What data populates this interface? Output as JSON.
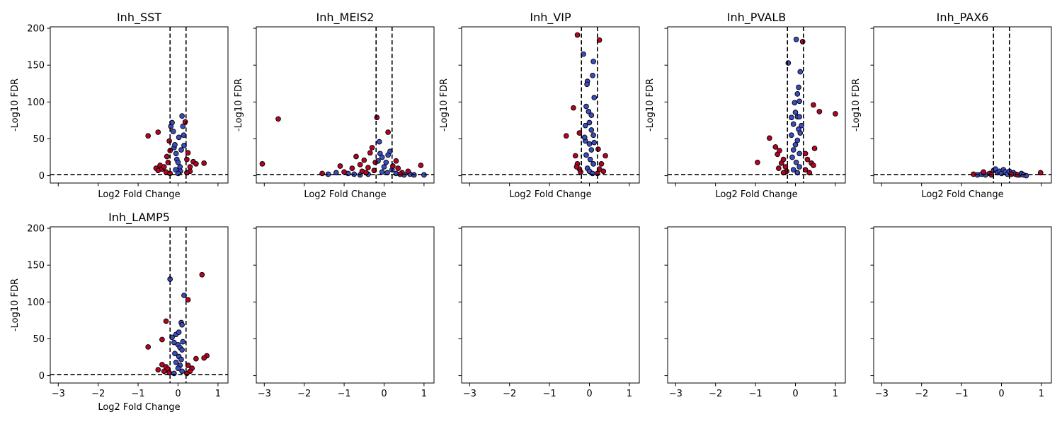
{
  "colors": {
    "significant": "#b40426",
    "not_significant": "#3b4cc0",
    "edge": "#000000"
  },
  "chart_data": {
    "type": "scatter",
    "layout": "grid-2x5",
    "xlim": [
      -3.2,
      1.25
    ],
    "ylim": [
      -10,
      202
    ],
    "xticks": [
      -3,
      -2,
      -1,
      0,
      1
    ],
    "yticks": [
      0,
      50,
      100,
      150,
      200
    ],
    "xlabel": "Log2 Fold Change",
    "ylabel": "-Log10 FDR",
    "reference_lines": {
      "vertical": [
        -0.2,
        0.2
      ],
      "horizontal": 1.3
    },
    "subplots": [
      {
        "title": "Inh_SST",
        "points": [
          [
            -0.75,
            54,
            1
          ],
          [
            -0.5,
            59,
            1
          ],
          [
            -0.55,
            10,
            1
          ],
          [
            -0.5,
            7,
            1
          ],
          [
            -0.45,
            14,
            1
          ],
          [
            -0.4,
            9,
            1
          ],
          [
            -0.35,
            12,
            1
          ],
          [
            -0.3,
            5,
            1
          ],
          [
            -0.28,
            26,
            1
          ],
          [
            -0.25,
            18,
            1
          ],
          [
            -0.22,
            47,
            1
          ],
          [
            -0.2,
            34,
            1
          ],
          [
            -0.18,
            67,
            0
          ],
          [
            -0.15,
            72,
            0
          ],
          [
            -0.12,
            60,
            0
          ],
          [
            -0.1,
            38,
            0
          ],
          [
            -0.08,
            42,
            0
          ],
          [
            -0.05,
            30,
            0
          ],
          [
            -0.03,
            22,
            0
          ],
          [
            0.0,
            18,
            0
          ],
          [
            0.02,
            52,
            0
          ],
          [
            0.05,
            12,
            0
          ],
          [
            0.08,
            35,
            0
          ],
          [
            0.1,
            81,
            0
          ],
          [
            0.12,
            67,
            0
          ],
          [
            0.14,
            55,
            0
          ],
          [
            0.15,
            41,
            0
          ],
          [
            0.06,
            6,
            0
          ],
          [
            -0.06,
            8,
            0
          ],
          [
            0.0,
            3,
            0
          ],
          [
            0.18,
            73,
            1
          ],
          [
            0.25,
            31,
            1
          ],
          [
            0.22,
            22,
            1
          ],
          [
            0.3,
            6,
            1
          ],
          [
            0.38,
            19,
            1
          ],
          [
            0.45,
            16,
            1
          ],
          [
            0.65,
            17,
            1
          ],
          [
            0.3,
            12,
            1
          ],
          [
            0.22,
            4,
            1
          ],
          [
            -0.2,
            3,
            1
          ]
        ]
      },
      {
        "title": "Inh_MEIS2",
        "points": [
          [
            -3.05,
            16,
            1
          ],
          [
            -2.65,
            77,
            1
          ],
          [
            -1.55,
            3,
            1
          ],
          [
            -1.1,
            13,
            1
          ],
          [
            -1.0,
            5,
            1
          ],
          [
            -0.8,
            10,
            1
          ],
          [
            -0.7,
            26,
            1
          ],
          [
            -0.6,
            15,
            1
          ],
          [
            -0.55,
            6,
            1
          ],
          [
            -0.5,
            21,
            1
          ],
          [
            -0.45,
            4,
            1
          ],
          [
            -0.4,
            11,
            1
          ],
          [
            -0.35,
            31,
            1
          ],
          [
            -0.3,
            38,
            1
          ],
          [
            -0.25,
            7,
            1
          ],
          [
            -0.22,
            18,
            1
          ],
          [
            -1.4,
            2,
            0
          ],
          [
            -1.2,
            4,
            0
          ],
          [
            -0.9,
            3,
            0
          ],
          [
            -0.75,
            2,
            0
          ],
          [
            -0.6,
            1,
            0
          ],
          [
            -0.4,
            2,
            0
          ],
          [
            -0.15,
            20,
            0
          ],
          [
            -0.12,
            46,
            0
          ],
          [
            -0.1,
            30,
            0
          ],
          [
            -0.05,
            25,
            0
          ],
          [
            0.0,
            12,
            0
          ],
          [
            0.05,
            18,
            0
          ],
          [
            0.1,
            28,
            0
          ],
          [
            0.15,
            33,
            0
          ],
          [
            0.2,
            8,
            0
          ],
          [
            0.3,
            3,
            0
          ],
          [
            0.5,
            1,
            0
          ],
          [
            0.65,
            2,
            0
          ],
          [
            0.75,
            1,
            0
          ],
          [
            1.0,
            1,
            0
          ],
          [
            -0.05,
            5,
            0
          ],
          [
            0.08,
            4,
            0
          ],
          [
            -0.18,
            79,
            1
          ],
          [
            0.1,
            59,
            1
          ],
          [
            0.22,
            13,
            1
          ],
          [
            0.35,
            10,
            1
          ],
          [
            0.45,
            4,
            1
          ],
          [
            0.6,
            6,
            1
          ],
          [
            0.92,
            14,
            1
          ],
          [
            0.3,
            20,
            1
          ],
          [
            0.4,
            2,
            1
          ]
        ]
      },
      {
        "title": "Inh_VIP",
        "points": [
          [
            -0.3,
            191,
            1
          ],
          [
            -0.4,
            92,
            1
          ],
          [
            -0.58,
            54,
            1
          ],
          [
            -0.25,
            58,
            1
          ],
          [
            -0.35,
            27,
            1
          ],
          [
            -0.3,
            16,
            1
          ],
          [
            -0.25,
            9,
            1
          ],
          [
            -0.22,
            5,
            1
          ],
          [
            -0.32,
            12,
            1
          ],
          [
            -0.15,
            165,
            0
          ],
          [
            -0.05,
            128,
            0
          ],
          [
            -0.06,
            124,
            0
          ],
          [
            0.1,
            155,
            0
          ],
          [
            0.08,
            136,
            0
          ],
          [
            0.12,
            106,
            0
          ],
          [
            -0.08,
            94,
            0
          ],
          [
            -0.02,
            87,
            0
          ],
          [
            0.05,
            82,
            0
          ],
          [
            -0.1,
            68,
            0
          ],
          [
            0.0,
            72,
            0
          ],
          [
            0.05,
            62,
            0
          ],
          [
            0.1,
            55,
            0
          ],
          [
            -0.1,
            47,
            0
          ],
          [
            0.0,
            43,
            0
          ],
          [
            0.05,
            35,
            0
          ],
          [
            -0.08,
            28,
            0
          ],
          [
            0.02,
            22,
            0
          ],
          [
            0.1,
            16,
            0
          ],
          [
            -0.05,
            10,
            0
          ],
          [
            0.0,
            6,
            0
          ],
          [
            0.08,
            3,
            0
          ],
          [
            -0.12,
            52,
            0
          ],
          [
            0.12,
            45,
            0
          ],
          [
            0.25,
            184,
            1
          ],
          [
            0.22,
            36,
            1
          ],
          [
            0.4,
            27,
            1
          ],
          [
            0.3,
            16,
            1
          ],
          [
            0.25,
            9,
            1
          ],
          [
            0.35,
            6,
            1
          ],
          [
            0.2,
            3,
            1
          ]
        ]
      },
      {
        "title": "Inh_PVALB",
        "points": [
          [
            -0.95,
            18,
            1
          ],
          [
            -0.65,
            51,
            1
          ],
          [
            -0.5,
            39,
            1
          ],
          [
            -0.45,
            29,
            1
          ],
          [
            -0.4,
            34,
            1
          ],
          [
            -0.35,
            17,
            1
          ],
          [
            -0.3,
            22,
            1
          ],
          [
            -0.25,
            12,
            1
          ],
          [
            -0.22,
            6,
            1
          ],
          [
            -0.42,
            10,
            1
          ],
          [
            -0.3,
            4,
            1
          ],
          [
            -0.18,
            153,
            0
          ],
          [
            0.02,
            185,
            0
          ],
          [
            0.12,
            141,
            0
          ],
          [
            0.08,
            120,
            0
          ],
          [
            0.05,
            111,
            0
          ],
          [
            0.1,
            101,
            0
          ],
          [
            -0.02,
            99,
            0
          ],
          [
            0.0,
            86,
            0
          ],
          [
            0.05,
            80,
            0
          ],
          [
            0.1,
            80,
            0
          ],
          [
            -0.1,
            79,
            0
          ],
          [
            -0.05,
            70,
            0
          ],
          [
            0.08,
            63,
            0
          ],
          [
            0.12,
            58,
            0
          ],
          [
            -0.1,
            55,
            0
          ],
          [
            0.05,
            48,
            0
          ],
          [
            0.0,
            42,
            0
          ],
          [
            -0.05,
            35,
            0
          ],
          [
            0.1,
            30,
            0
          ],
          [
            -0.08,
            25,
            0
          ],
          [
            0.02,
            18,
            0
          ],
          [
            0.1,
            12,
            0
          ],
          [
            -0.05,
            8,
            0
          ],
          [
            0.05,
            4,
            0
          ],
          [
            0.15,
            68,
            0
          ],
          [
            0.18,
            182,
            1
          ],
          [
            0.45,
            96,
            1
          ],
          [
            0.6,
            87,
            1
          ],
          [
            1.0,
            84,
            1
          ],
          [
            0.48,
            37,
            1
          ],
          [
            0.25,
            30,
            1
          ],
          [
            0.3,
            22,
            1
          ],
          [
            0.4,
            17,
            1
          ],
          [
            0.45,
            14,
            1
          ],
          [
            0.25,
            8,
            1
          ],
          [
            0.35,
            4,
            1
          ]
        ]
      },
      {
        "title": "Inh_PAX6",
        "points": [
          [
            -0.7,
            2,
            1
          ],
          [
            -0.45,
            5,
            1
          ],
          [
            -0.3,
            3,
            1
          ],
          [
            -0.25,
            1,
            1
          ],
          [
            -0.6,
            1,
            0
          ],
          [
            -0.5,
            2,
            0
          ],
          [
            -0.4,
            1,
            0
          ],
          [
            -0.2,
            7,
            0
          ],
          [
            -0.15,
            9,
            0
          ],
          [
            -0.1,
            4,
            0
          ],
          [
            -0.05,
            6,
            0
          ],
          [
            0.0,
            3,
            0
          ],
          [
            0.05,
            8,
            0
          ],
          [
            0.1,
            5,
            0
          ],
          [
            0.15,
            2,
            0
          ],
          [
            0.2,
            6,
            0
          ],
          [
            0.3,
            4,
            0
          ],
          [
            0.35,
            2,
            0
          ],
          [
            0.45,
            1,
            0
          ],
          [
            0.5,
            3,
            0
          ],
          [
            0.55,
            1,
            0
          ],
          [
            0.62,
            0,
            0
          ],
          [
            0.25,
            2,
            1
          ],
          [
            0.4,
            1,
            1
          ],
          [
            0.98,
            4,
            1
          ]
        ]
      },
      {
        "title": "Inh_LAMP5",
        "points": [
          [
            -0.75,
            39,
            1
          ],
          [
            -0.4,
            49,
            1
          ],
          [
            -0.3,
            74,
            1
          ],
          [
            -0.5,
            8,
            1
          ],
          [
            -0.4,
            15,
            1
          ],
          [
            -0.35,
            6,
            1
          ],
          [
            -0.3,
            12,
            1
          ],
          [
            -0.25,
            9,
            1
          ],
          [
            -0.22,
            4,
            1
          ],
          [
            -0.2,
            131,
            0
          ],
          [
            -0.15,
            52,
            0
          ],
          [
            -0.05,
            56,
            0
          ],
          [
            0.02,
            59,
            0
          ],
          [
            0.08,
            72,
            0
          ],
          [
            0.1,
            69,
            0
          ],
          [
            0.15,
            109,
            0
          ],
          [
            -0.1,
            45,
            0
          ],
          [
            0.0,
            42,
            0
          ],
          [
            0.05,
            38,
            0
          ],
          [
            0.1,
            35,
            0
          ],
          [
            -0.08,
            30,
            0
          ],
          [
            0.02,
            26,
            0
          ],
          [
            0.08,
            22,
            0
          ],
          [
            -0.05,
            18,
            0
          ],
          [
            0.05,
            14,
            0
          ],
          [
            0.0,
            10,
            0
          ],
          [
            0.1,
            6,
            0
          ],
          [
            -0.1,
            3,
            0
          ],
          [
            0.12,
            46,
            0
          ],
          [
            0.25,
            103,
            1
          ],
          [
            0.6,
            137,
            1
          ],
          [
            0.72,
            27,
            1
          ],
          [
            0.65,
            24,
            1
          ],
          [
            0.45,
            23,
            1
          ],
          [
            0.25,
            14,
            1
          ],
          [
            0.35,
            10,
            1
          ],
          [
            0.3,
            6,
            1
          ],
          [
            0.22,
            3,
            1
          ]
        ]
      },
      {
        "title": "",
        "points": []
      },
      {
        "title": "",
        "points": []
      },
      {
        "title": "",
        "points": []
      },
      {
        "title": "",
        "points": []
      }
    ]
  }
}
